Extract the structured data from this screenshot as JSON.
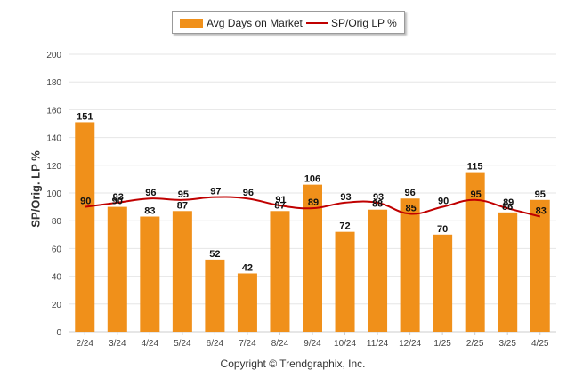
{
  "legend": {
    "bar_label": "Avg Days on Market",
    "line_label": "SP/Orig LP %"
  },
  "footer": {
    "copyright": "Copyright © Trendgraphix, Inc."
  },
  "colors": {
    "bar": "#F0901A",
    "line": "#C00000",
    "grid": "#e6e6e6",
    "axis": "#cccccc"
  },
  "chart_data": {
    "type": "bar",
    "title": "",
    "xlabel": "",
    "ylabel": "SP/Orig. LP %",
    "ylim": [
      0,
      200
    ],
    "yticks": [
      0,
      20,
      40,
      60,
      80,
      100,
      120,
      140,
      160,
      180,
      200
    ],
    "grid": true,
    "legend_position": "top-center",
    "categories": [
      "2/24",
      "3/24",
      "4/24",
      "5/24",
      "6/24",
      "7/24",
      "8/24",
      "9/24",
      "10/24",
      "11/24",
      "12/24",
      "1/25",
      "2/25",
      "3/25",
      "4/25"
    ],
    "series": [
      {
        "name": "Avg Days on Market",
        "kind": "bar",
        "values": [
          151,
          90,
          83,
          87,
          52,
          42,
          87,
          106,
          72,
          88,
          96,
          70,
          115,
          86,
          95
        ]
      },
      {
        "name": "SP/Orig LP %",
        "kind": "line",
        "values": [
          90,
          93,
          96,
          95,
          97,
          96,
          91,
          89,
          93,
          93,
          85,
          90,
          95,
          89,
          83
        ]
      }
    ]
  }
}
